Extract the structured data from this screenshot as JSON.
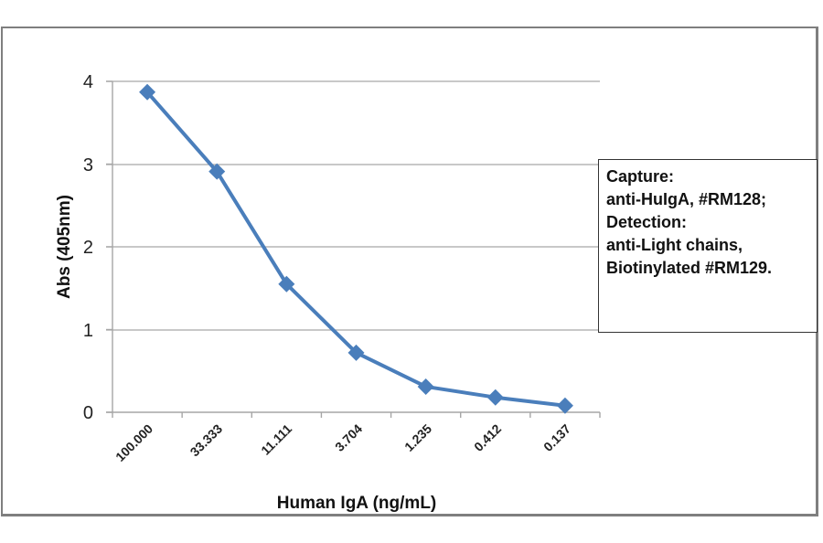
{
  "chart_data": {
    "type": "line",
    "title": "",
    "xlabel": "Human IgA (ng/mL)",
    "ylabel": "Abs (405nm)",
    "categories": [
      "100.000",
      "33.333",
      "11.111",
      "3.704",
      "1.235",
      "0.412",
      "0.137"
    ],
    "series": [
      {
        "name": "Abs (405nm)",
        "color": "#4a7ebb",
        "marker": "diamond",
        "values": [
          3.87,
          2.91,
          1.55,
          0.72,
          0.31,
          0.18,
          0.08
        ]
      }
    ],
    "ylim": [
      0,
      4
    ],
    "yticks": [
      "0",
      "1",
      "2",
      "3",
      "4"
    ],
    "grid": "horizontal",
    "legend": "none",
    "annotations": [
      "Capture:",
      "anti-HuIgA, #RM128;",
      "Detection:",
      "anti-Light chains,",
      "Biotinylated #RM129."
    ]
  },
  "axes": {
    "x_title": "Human IgA (ng/mL)",
    "y_title": "Abs (405nm)",
    "y_ticks": [
      "4",
      "3",
      "2",
      "1",
      "0"
    ],
    "x_ticks": [
      "100.000",
      "33.333",
      "11.111",
      "3.704",
      "1.235",
      "0.412",
      "0.137"
    ]
  },
  "annotation_box": {
    "lines": [
      "Capture:",
      "anti-HuIgA, #RM128;",
      "Detection:",
      "anti-Light chains,",
      "Biotinylated #RM129."
    ]
  },
  "colors": {
    "series": "#4a7ebb",
    "gridline": "#a6a6a6",
    "frame": "#7f7f7f"
  }
}
